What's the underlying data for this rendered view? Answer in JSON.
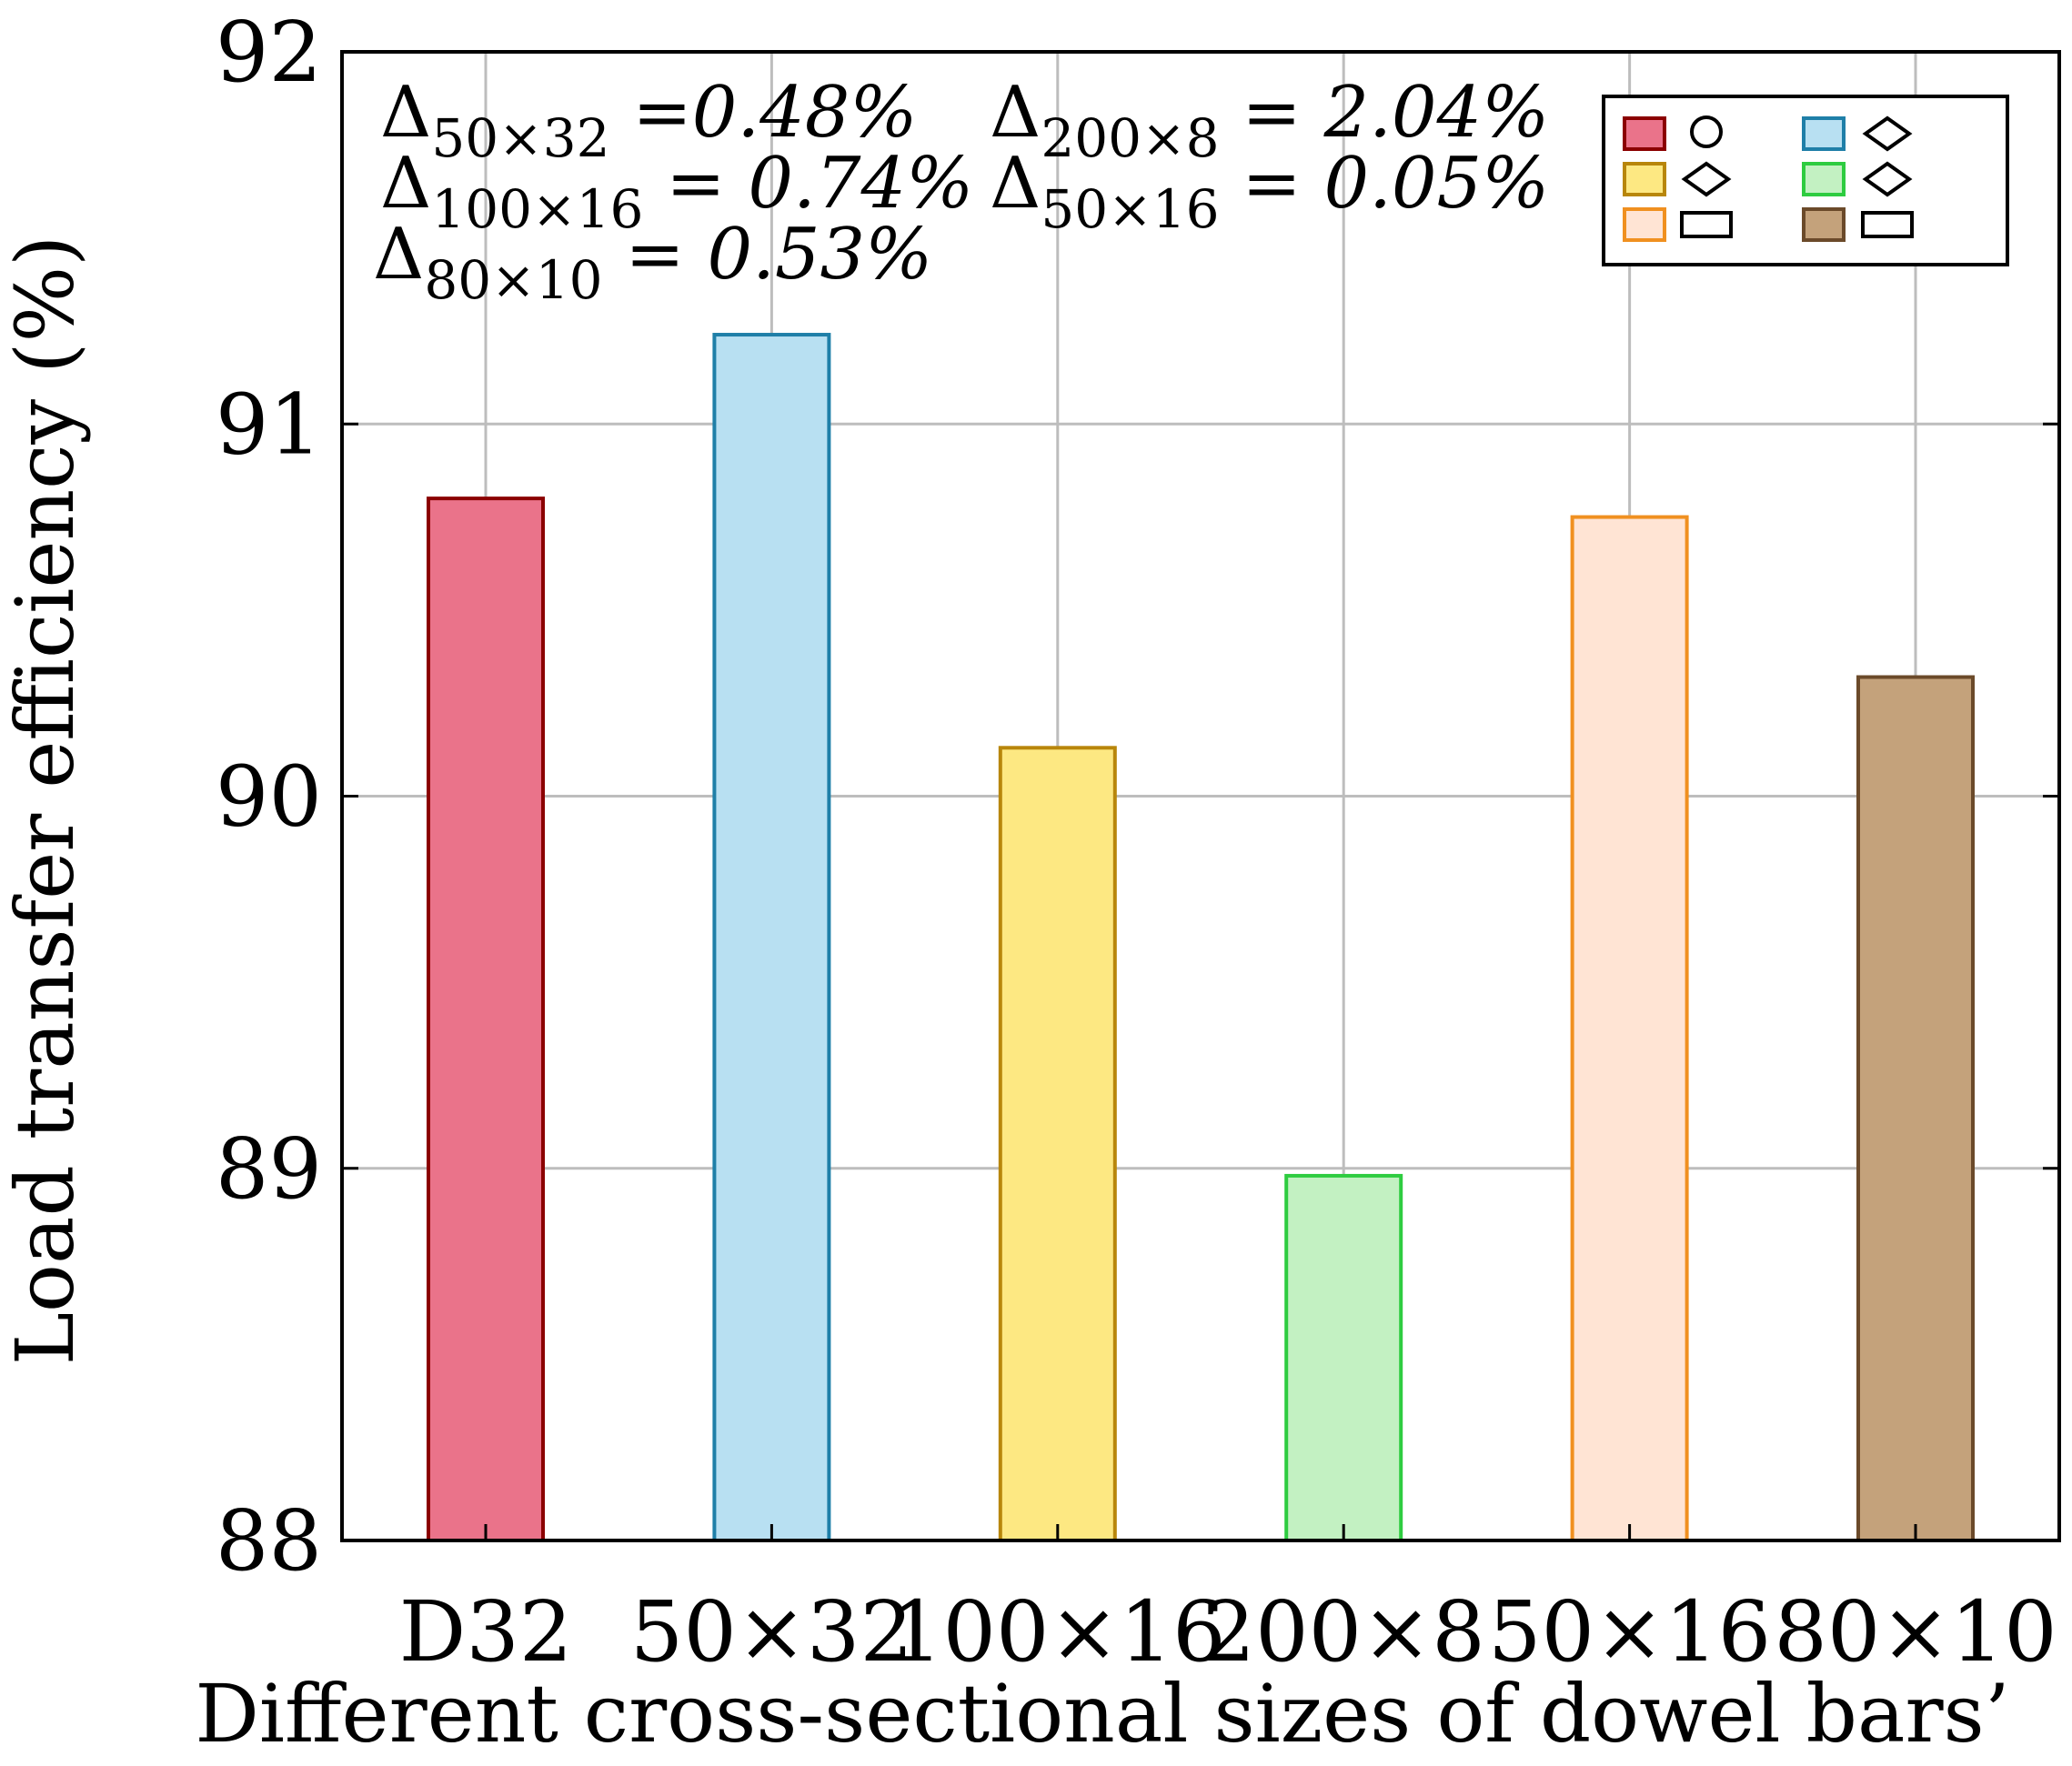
{
  "chart_data": {
    "type": "bar",
    "title": "",
    "xlabel": "Different cross-sectional sizes of dowel bars’",
    "ylabel": "Load transfer efficiency (%)",
    "ylim": [
      88,
      92
    ],
    "yticks": [
      "88",
      "89",
      "90",
      "91",
      "92"
    ],
    "grid": true,
    "categories": [
      "D32",
      "50×32",
      "100×16",
      "200×8",
      "50×16",
      "80×10"
    ],
    "values": [
      90.8,
      91.24,
      90.13,
      88.98,
      90.75,
      90.32
    ],
    "bar_fill_colors": [
      "#ea738a",
      "#b8e0f2",
      "#fde882",
      "#c3f1c2",
      "#ffe4d4",
      "#c4a27b"
    ],
    "bar_stroke_colors": [
      "#8b0000",
      "#1f7fa8",
      "#b8860b",
      "#2ecc40",
      "#f09020",
      "#6b4a2a"
    ],
    "annotations": [
      {
        "prefix": "Δ",
        "sub": "50×32",
        "value": " =0.48%"
      },
      {
        "prefix": "Δ",
        "sub": "200×8",
        "value": " = 2.04%"
      },
      {
        "prefix": "Δ",
        "sub": "100×16",
        "value": " = 0.74%"
      },
      {
        "prefix": "Δ",
        "sub": "50×16",
        "value": " = 0.05%"
      },
      {
        "prefix": "Δ",
        "sub": "80×10",
        "value": " = 0.53%"
      }
    ],
    "legend": {
      "placement": "top-right",
      "entries": [
        {
          "fill": "#ea738a",
          "stroke": "#8b0000",
          "marker": "circle"
        },
        {
          "fill": "#b8e0f2",
          "stroke": "#1f7fa8",
          "marker": "diamond"
        },
        {
          "fill": "#fde882",
          "stroke": "#b8860b",
          "marker": "diamond"
        },
        {
          "fill": "#c3f1c2",
          "stroke": "#2ecc40",
          "marker": "diamond"
        },
        {
          "fill": "#ffe4d4",
          "stroke": "#f09020",
          "marker": "rectangle"
        },
        {
          "fill": "#c4a27b",
          "stroke": "#6b4a2a",
          "marker": "rectangle"
        }
      ]
    }
  }
}
